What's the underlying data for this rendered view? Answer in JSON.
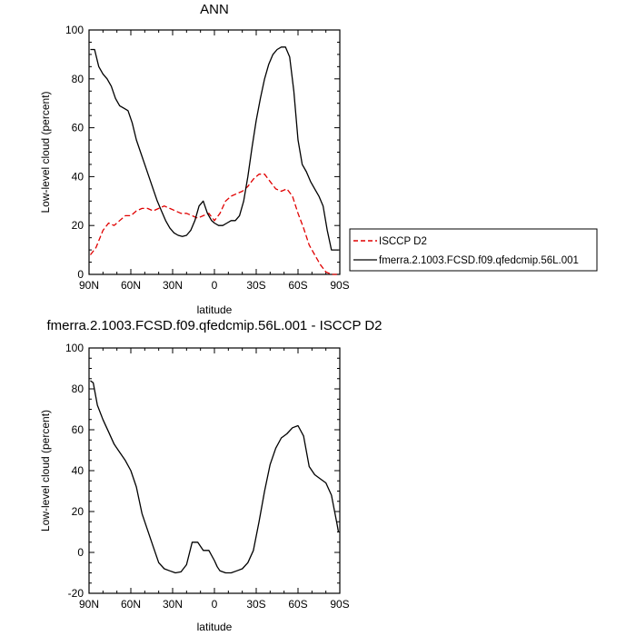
{
  "chart_data": [
    {
      "type": "line",
      "title": "ANN",
      "xlabel": "latitude",
      "ylabel": "Low-level cloud (percent)",
      "xlim": [
        -90,
        90
      ],
      "ylim": [
        0,
        100
      ],
      "x_tick_values": [
        -90,
        -60,
        -30,
        0,
        30,
        60,
        90
      ],
      "x_tick_labels": [
        "90N",
        "60N",
        "30N",
        "0",
        "30S",
        "60S",
        "90S"
      ],
      "y_tick_values": [
        0,
        20,
        40,
        60,
        80,
        100
      ],
      "y_tick_labels": [
        "0",
        "20",
        "40",
        "60",
        "80",
        "100"
      ],
      "legend_position": "right",
      "series": [
        {
          "name": "ISCCP D2",
          "color": "#e00000",
          "dashed": true,
          "x": [
            -89,
            -85,
            -80,
            -76,
            -72,
            -68,
            -64,
            -60,
            -56,
            -52,
            -48,
            -44,
            -40,
            -36,
            -32,
            -28,
            -24,
            -20,
            -16,
            -12,
            -8,
            -4,
            0,
            4,
            8,
            12,
            16,
            20,
            24,
            28,
            32,
            36,
            40,
            44,
            48,
            52,
            56,
            60,
            64,
            68,
            72,
            76,
            80,
            84,
            88
          ],
          "values": [
            8,
            11,
            18,
            21,
            20,
            22,
            24,
            24,
            26,
            27,
            27,
            26,
            27,
            28,
            27,
            26,
            25,
            25,
            24,
            23,
            24,
            25,
            22,
            25,
            30,
            32,
            33,
            34,
            36,
            39,
            41,
            41,
            38,
            35,
            34,
            35,
            32,
            25,
            19,
            12,
            8,
            4,
            1,
            0,
            0
          ]
        },
        {
          "name": "fmerra.2.1003.FCSD.f09.qfedcmip.56L.001",
          "color": "#000000",
          "dashed": false,
          "x": [
            -89,
            -86,
            -83,
            -80,
            -77,
            -74,
            -71,
            -68,
            -65,
            -62,
            -59,
            -56,
            -53,
            -50,
            -47,
            -44,
            -41,
            -38,
            -35,
            -32,
            -29,
            -26,
            -23,
            -20,
            -17,
            -14,
            -11,
            -8,
            -5,
            -2,
            0,
            3,
            6,
            9,
            12,
            15,
            18,
            21,
            24,
            27,
            30,
            33,
            36,
            39,
            42,
            45,
            48,
            51,
            54,
            57,
            60,
            63,
            66,
            69,
            72,
            75,
            78,
            81,
            84,
            87,
            89
          ],
          "values": [
            92,
            92,
            85,
            82,
            80,
            77,
            72,
            69,
            68,
            67,
            62,
            55,
            50,
            45,
            40,
            35,
            30,
            26,
            22,
            19,
            17,
            16,
            15.5,
            16,
            18,
            22,
            28,
            30,
            25,
            22,
            21,
            20,
            20,
            21,
            22,
            22,
            24,
            30,
            40,
            52,
            63,
            72,
            80,
            86,
            90,
            92,
            93,
            93,
            89,
            75,
            55,
            45,
            42,
            38,
            35,
            32,
            28,
            18,
            10,
            10,
            10
          ]
        }
      ]
    },
    {
      "type": "line",
      "title": "fmerra.2.1003.FCSD.f09.qfedcmip.56L.001 - ISCCP D2",
      "xlabel": "latitude",
      "ylabel": "Low-level cloud (percent)",
      "xlim": [
        -90,
        90
      ],
      "ylim": [
        -20,
        100
      ],
      "x_tick_values": [
        -90,
        -60,
        -30,
        0,
        30,
        60,
        90
      ],
      "x_tick_labels": [
        "90N",
        "60N",
        "30N",
        "0",
        "30S",
        "60S",
        "90S"
      ],
      "y_tick_values": [
        -20,
        0,
        20,
        40,
        60,
        80,
        100
      ],
      "y_tick_labels": [
        "-20",
        "0",
        "20",
        "40",
        "60",
        "80",
        "100"
      ],
      "series": [
        {
          "color": "#000000",
          "dashed": false,
          "x": [
            -89,
            -87,
            -84,
            -80,
            -76,
            -72,
            -68,
            -64,
            -60,
            -56,
            -52,
            -48,
            -44,
            -40,
            -36,
            -32,
            -28,
            -24,
            -20,
            -16,
            -12,
            -8,
            -4,
            0,
            2,
            4,
            8,
            12,
            16,
            20,
            24,
            28,
            32,
            36,
            40,
            44,
            48,
            52,
            56,
            60,
            64,
            68,
            72,
            76,
            80,
            84,
            88,
            89
          ],
          "values": [
            84,
            83,
            72,
            65,
            59,
            53,
            49,
            45,
            40,
            32,
            19,
            11,
            3,
            -5,
            -8,
            -9,
            -10,
            -9.5,
            -6,
            5,
            5,
            1,
            1,
            -4,
            -7,
            -9,
            -10,
            -10,
            -9,
            -8,
            -5,
            1,
            15,
            30,
            43,
            51,
            56,
            58,
            61,
            62,
            57,
            42,
            38,
            36,
            34,
            28,
            14,
            10
          ]
        }
      ]
    }
  ]
}
